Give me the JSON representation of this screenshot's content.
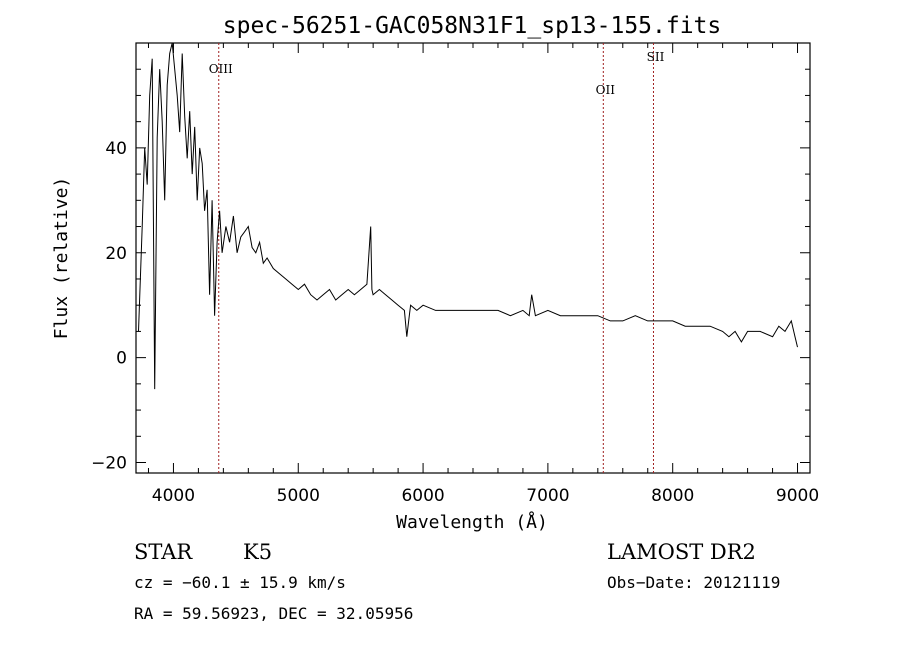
{
  "chart_data": {
    "type": "line",
    "title": "spec-56251-GAC058N31F1_sp13-155.fits",
    "xlabel": "Wavelength (Å)",
    "ylabel": "Flux (relative)",
    "xlim": [
      3700,
      9100
    ],
    "ylim": [
      -22,
      60
    ],
    "xticks": [
      4000,
      5000,
      6000,
      7000,
      8000,
      9000
    ],
    "yticks": [
      -20,
      0,
      20,
      40
    ],
    "grid": false,
    "series": [
      {
        "x": [
          3720,
          3750,
          3770,
          3790,
          3810,
          3830,
          3850,
          3870,
          3890,
          3910,
          3930,
          3950,
          3970,
          3990,
          4010,
          4030,
          4050,
          4070,
          4090,
          4110,
          4130,
          4150,
          4170,
          4190,
          4210,
          4230,
          4250,
          4270,
          4290,
          4310,
          4330,
          4350,
          4370,
          4390,
          4420,
          4450,
          4480,
          4510,
          4540,
          4570,
          4600,
          4630,
          4660,
          4690,
          4720,
          4750,
          4800,
          4850,
          4900,
          4950,
          5000,
          5050,
          5100,
          5150,
          5200,
          5250,
          5300,
          5350,
          5400,
          5450,
          5500,
          5550,
          5580,
          5590,
          5600,
          5650,
          5700,
          5750,
          5800,
          5850,
          5870,
          5890,
          5900,
          5950,
          6000,
          6100,
          6200,
          6300,
          6400,
          6500,
          6600,
          6700,
          6800,
          6850,
          6870,
          6900,
          7000,
          7100,
          7200,
          7300,
          7400,
          7500,
          7600,
          7700,
          7800,
          7900,
          8000,
          8100,
          8200,
          8300,
          8400,
          8450,
          8500,
          8550,
          8600,
          8700,
          8800,
          8850,
          8900,
          8950,
          8980,
          9000
        ],
        "y": [
          5,
          25,
          40,
          33,
          50,
          57,
          -6,
          42,
          55,
          45,
          30,
          52,
          58,
          60,
          55,
          50,
          43,
          58,
          46,
          38,
          47,
          35,
          44,
          30,
          40,
          37,
          28,
          32,
          12,
          30,
          8,
          22,
          28,
          20,
          25,
          22,
          27,
          20,
          23,
          24,
          25,
          21,
          20,
          22,
          18,
          19,
          17,
          16,
          15,
          14,
          13,
          14,
          12,
          11,
          12,
          13,
          11,
          12,
          13,
          12,
          13,
          14,
          25,
          13,
          12,
          13,
          12,
          11,
          10,
          9,
          4,
          8,
          10,
          9,
          10,
          9,
          9,
          9,
          9,
          9,
          9,
          8,
          9,
          8,
          12,
          8,
          9,
          8,
          8,
          8,
          8,
          7,
          7,
          8,
          7,
          7,
          7,
          6,
          6,
          6,
          5,
          4,
          5,
          3,
          5,
          5,
          4,
          6,
          5,
          7,
          4,
          2
        ]
      }
    ],
    "lines": [
      {
        "label": "OIII",
        "x": 4363
      },
      {
        "label": "OII",
        "x": 7444
      },
      {
        "label": "SII",
        "x": 7846
      }
    ]
  },
  "info": {
    "class_label": "STAR",
    "subclass_label": "K5",
    "survey_label": "LAMOST DR2",
    "cz_line": "cz = −60.1 ± 15.9 km/s",
    "obs_date_line": "Obs−Date: 20121119",
    "radec_line": "RA =  59.56923, DEC =  32.05956"
  }
}
